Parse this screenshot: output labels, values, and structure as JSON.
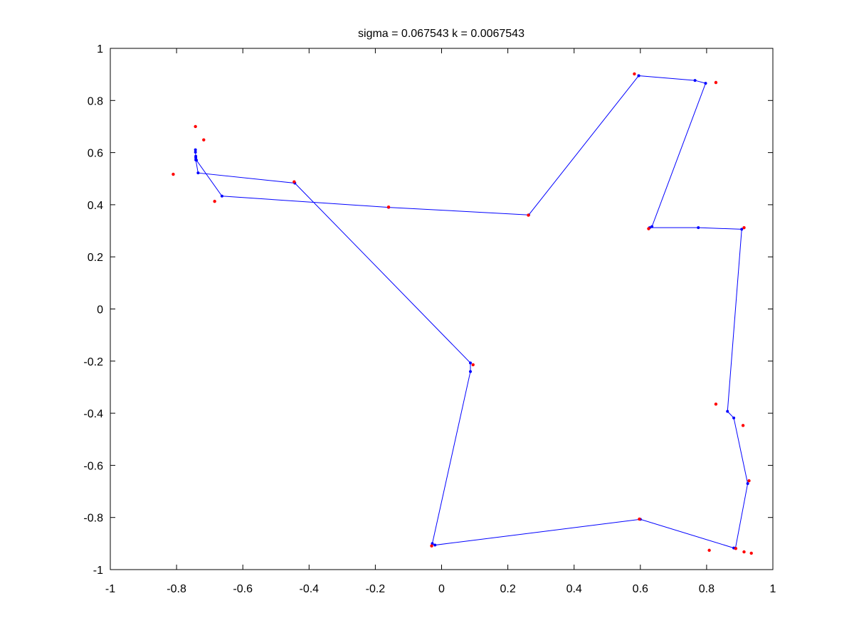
{
  "chart_data": {
    "type": "line",
    "title": "sigma = 0.067543 k = 0.0067543",
    "xlabel": "",
    "ylabel": "",
    "xlim": [
      -1,
      1
    ],
    "ylim": [
      -1,
      1
    ],
    "grid": false,
    "x_ticks": [
      -1,
      -0.8,
      -0.6,
      -0.4,
      -0.2,
      0,
      0.2,
      0.4,
      0.6,
      0.8,
      1
    ],
    "y_ticks": [
      -1,
      -0.8,
      -0.6,
      -0.4,
      -0.2,
      0,
      0.2,
      0.4,
      0.6,
      0.8,
      1
    ],
    "x_tick_labels": [
      "-1",
      "-0.8",
      "-0.6",
      "-0.4",
      "-0.2",
      "0",
      "0.2",
      "0.4",
      "0.6",
      "0.8",
      "1"
    ],
    "y_tick_labels": [
      "-1",
      "-0.8",
      "-0.6",
      "-0.4",
      "-0.2",
      "0",
      "0.2",
      "0.4",
      "0.6",
      "0.8",
      "1"
    ],
    "series": [
      {
        "style": "blue line with point markers",
        "color": "#0000ff",
        "points": [
          [
            0.595,
            0.895
          ],
          [
            0.765,
            0.877
          ],
          [
            0.797,
            0.866
          ],
          [
            0.635,
            0.316
          ],
          [
            0.628,
            0.312
          ],
          [
            0.775,
            0.312
          ],
          [
            0.906,
            0.306
          ],
          [
            0.863,
            -0.393
          ],
          [
            0.882,
            -0.418
          ],
          [
            0.924,
            -0.67
          ],
          [
            0.887,
            -0.918
          ],
          [
            0.882,
            -0.917
          ],
          [
            0.6,
            -0.807
          ],
          [
            -0.02,
            -0.906
          ],
          [
            -0.028,
            -0.9
          ],
          [
            0.087,
            -0.24
          ],
          [
            0.087,
            -0.207
          ],
          [
            -0.443,
            0.483
          ],
          [
            -0.735,
            0.522
          ],
          [
            -0.742,
            0.572
          ],
          [
            -0.742,
            0.586
          ],
          [
            -0.743,
            0.602
          ],
          [
            -0.743,
            0.611
          ],
          [
            -0.742,
            0.58
          ],
          [
            -0.74,
            0.571
          ],
          [
            -0.663,
            0.433
          ],
          [
            -0.16,
            0.39
          ],
          [
            0.263,
            0.361
          ],
          [
            0.595,
            0.895
          ]
        ]
      },
      {
        "style": "red point markers",
        "color": "#ff0000",
        "points": [
          [
            0.582,
            0.902
          ],
          [
            0.828,
            0.869
          ],
          [
            0.625,
            0.308
          ],
          [
            0.913,
            0.312
          ],
          [
            0.828,
            -0.365
          ],
          [
            0.91,
            -0.447
          ],
          [
            0.928,
            -0.659
          ],
          [
            0.888,
            -0.919
          ],
          [
            0.808,
            -0.926
          ],
          [
            0.913,
            -0.932
          ],
          [
            0.935,
            -0.937
          ],
          [
            0.597,
            -0.806
          ],
          [
            -0.03,
            -0.909
          ],
          [
            0.095,
            -0.214
          ],
          [
            -0.445,
            0.488
          ],
          [
            -0.81,
            0.517
          ],
          [
            -0.743,
            0.7
          ],
          [
            -0.718,
            0.649
          ],
          [
            -0.685,
            0.413
          ],
          [
            -0.16,
            0.391
          ],
          [
            0.262,
            0.36
          ]
        ]
      }
    ]
  }
}
